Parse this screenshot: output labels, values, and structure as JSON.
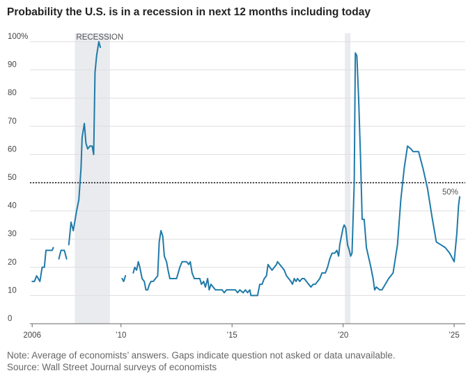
{
  "title": "Probability the U.S. is in a recession in next 12 months including today",
  "note": "Note: Average of economists’ answers. Gaps indicate question not asked or data unavailable.",
  "source": "Source: Wall Street Journal surveys of economists",
  "chart_data": {
    "type": "line",
    "title": "Probability the U.S. is in a recession in next 12 months including today",
    "xlabel": "",
    "ylabel": "",
    "xlim": [
      2005.9,
      2025.5
    ],
    "ylim": [
      0,
      100
    ],
    "y_ticks": [
      0,
      10,
      20,
      30,
      40,
      50,
      60,
      70,
      80,
      90,
      100
    ],
    "y_tick_labels": [
      "0",
      "10",
      "20",
      "30",
      "40",
      "50",
      "60",
      "70",
      "80",
      "90",
      "100%"
    ],
    "x_ticks": [
      2006,
      2010,
      2015,
      2020,
      2025
    ],
    "x_tick_labels": [
      "2006",
      "’10",
      "’15",
      "’20",
      "’25"
    ],
    "grid": true,
    "reference_line": {
      "value": 50,
      "label": "50%"
    },
    "recessions": [
      {
        "start": 2007.92,
        "end": 2009.5,
        "label": "RECESSION"
      },
      {
        "start": 2020.08,
        "end": 2020.33,
        "label": ""
      }
    ],
    "line_color": "#1f7aa8",
    "series": [
      {
        "name": "",
        "segments": [
          [
            [
              2006.0,
              15
            ],
            [
              2006.1,
              15
            ],
            [
              2006.2,
              17
            ],
            [
              2006.35,
              15
            ],
            [
              2006.45,
              20
            ],
            [
              2006.55,
              20
            ],
            [
              2006.62,
              26
            ],
            [
              2006.9,
              26
            ],
            [
              2006.95,
              27
            ]
          ],
          [
            [
              2007.2,
              23
            ],
            [
              2007.3,
              26
            ],
            [
              2007.45,
              26
            ],
            [
              2007.55,
              23
            ]
          ],
          [
            [
              2007.65,
              28
            ],
            [
              2007.75,
              36
            ],
            [
              2007.85,
              33
            ],
            [
              2008.0,
              40
            ],
            [
              2008.1,
              44
            ],
            [
              2008.2,
              55
            ],
            [
              2008.25,
              66
            ],
            [
              2008.35,
              71
            ],
            [
              2008.42,
              64
            ],
            [
              2008.5,
              62
            ],
            [
              2008.6,
              63
            ],
            [
              2008.7,
              63
            ],
            [
              2008.77,
              60
            ],
            [
              2008.83,
              89
            ],
            [
              2008.9,
              95
            ],
            [
              2009.0,
              100
            ],
            [
              2009.07,
              98
            ]
          ],
          [
            [
              2010.05,
              16
            ],
            [
              2010.12,
              15
            ],
            [
              2010.2,
              17
            ]
          ],
          [
            [
              2010.55,
              18
            ],
            [
              2010.62,
              20
            ],
            [
              2010.7,
              19
            ],
            [
              2010.78,
              22
            ],
            [
              2010.85,
              20
            ],
            [
              2010.95,
              16
            ],
            [
              2011.05,
              15
            ],
            [
              2011.12,
              12
            ],
            [
              2011.2,
              12
            ],
            [
              2011.28,
              14
            ],
            [
              2011.35,
              15
            ],
            [
              2011.45,
              15
            ],
            [
              2011.55,
              16
            ],
            [
              2011.65,
              17
            ],
            [
              2011.72,
              29
            ],
            [
              2011.8,
              33
            ],
            [
              2011.88,
              31
            ],
            [
              2011.95,
              24
            ],
            [
              2012.05,
              22
            ],
            [
              2012.12,
              19
            ],
            [
              2012.2,
              16
            ],
            [
              2012.5,
              16
            ],
            [
              2012.65,
              20
            ],
            [
              2012.75,
              22
            ],
            [
              2012.85,
              22
            ],
            [
              2012.95,
              22
            ],
            [
              2013.05,
              21
            ],
            [
              2013.12,
              22
            ],
            [
              2013.2,
              18
            ],
            [
              2013.3,
              16
            ],
            [
              2013.55,
              16
            ],
            [
              2013.62,
              14
            ],
            [
              2013.72,
              15
            ],
            [
              2013.8,
              13
            ],
            [
              2013.9,
              16
            ],
            [
              2013.97,
              12
            ],
            [
              2014.05,
              14
            ],
            [
              2014.15,
              13
            ],
            [
              2014.25,
              12
            ],
            [
              2014.55,
              12
            ],
            [
              2014.65,
              11
            ],
            [
              2014.75,
              12
            ],
            [
              2015.15,
              12
            ],
            [
              2015.25,
              11
            ],
            [
              2015.35,
              12
            ],
            [
              2015.5,
              11
            ],
            [
              2015.6,
              12
            ],
            [
              2015.7,
              11
            ],
            [
              2015.8,
              12
            ],
            [
              2015.85,
              10
            ],
            [
              2016.15,
              10
            ],
            [
              2016.25,
              14
            ],
            [
              2016.35,
              14
            ],
            [
              2016.45,
              16
            ],
            [
              2016.55,
              17
            ],
            [
              2016.62,
              21
            ],
            [
              2016.7,
              20
            ],
            [
              2016.8,
              19
            ],
            [
              2016.9,
              20
            ],
            [
              2017.0,
              21
            ],
            [
              2017.05,
              22
            ],
            [
              2017.15,
              21
            ],
            [
              2017.25,
              20
            ],
            [
              2017.35,
              19
            ],
            [
              2017.45,
              17
            ],
            [
              2017.55,
              16
            ],
            [
              2017.65,
              15
            ],
            [
              2017.72,
              14
            ],
            [
              2017.8,
              16
            ],
            [
              2017.88,
              15
            ],
            [
              2017.95,
              16
            ],
            [
              2018.05,
              15
            ],
            [
              2018.15,
              16
            ],
            [
              2018.25,
              16
            ],
            [
              2018.35,
              15
            ],
            [
              2018.45,
              14
            ],
            [
              2018.55,
              13
            ],
            [
              2018.65,
              14
            ],
            [
              2018.75,
              14
            ],
            [
              2018.85,
              15
            ],
            [
              2018.95,
              16
            ],
            [
              2019.05,
              18
            ],
            [
              2019.2,
              18
            ],
            [
              2019.3,
              20
            ],
            [
              2019.4,
              23
            ],
            [
              2019.5,
              25
            ],
            [
              2019.62,
              25
            ],
            [
              2019.72,
              26
            ],
            [
              2019.8,
              24
            ],
            [
              2019.85,
              28
            ],
            [
              2019.9,
              30
            ],
            [
              2020.0,
              34
            ],
            [
              2020.05,
              35
            ],
            [
              2020.12,
              34
            ],
            [
              2020.2,
              28
            ],
            [
              2020.28,
              26
            ],
            [
              2020.34,
              24
            ],
            [
              2020.4,
              25
            ],
            [
              2020.5,
              50
            ],
            [
              2020.55,
              96
            ],
            [
              2020.62,
              95
            ],
            [
              2020.7,
              80
            ],
            [
              2020.78,
              60
            ],
            [
              2020.86,
              37
            ],
            [
              2020.95,
              37
            ],
            [
              2021.05,
              27
            ],
            [
              2021.25,
              20
            ],
            [
              2021.35,
              16
            ],
            [
              2021.42,
              12
            ],
            [
              2021.5,
              13
            ],
            [
              2021.65,
              12
            ],
            [
              2021.75,
              12
            ],
            [
              2021.9,
              14
            ],
            [
              2022.05,
              16
            ],
            [
              2022.25,
              18
            ],
            [
              2022.45,
              28
            ],
            [
              2022.6,
              44
            ],
            [
              2022.75,
              55
            ],
            [
              2022.9,
              63
            ],
            [
              2023.05,
              62
            ],
            [
              2023.15,
              61
            ],
            [
              2023.4,
              61
            ],
            [
              2023.6,
              55
            ],
            [
              2023.8,
              48
            ],
            [
              2024.0,
              38
            ],
            [
              2024.2,
              29
            ],
            [
              2024.4,
              28
            ],
            [
              2024.6,
              27
            ],
            [
              2024.8,
              25
            ],
            [
              2025.0,
              22
            ],
            [
              2025.12,
              32
            ],
            [
              2025.2,
              42
            ],
            [
              2025.25,
              45
            ]
          ]
        ]
      }
    ]
  }
}
